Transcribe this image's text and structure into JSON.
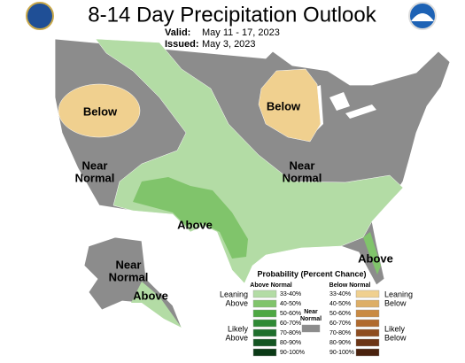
{
  "header": {
    "title": "8-14 Day Precipitation Outlook",
    "valid_label": "Valid:",
    "valid": "May 11 - 17, 2023",
    "issued_label": "Issued:",
    "issued": "May 3, 2023"
  },
  "map_labels": [
    {
      "lines": [
        "Below"
      ]
    },
    {
      "lines": [
        "Below"
      ]
    },
    {
      "lines": [
        "Near",
        "Normal"
      ]
    },
    {
      "lines": [
        "Near",
        "Normal"
      ]
    },
    {
      "lines": [
        "Above"
      ]
    },
    {
      "lines": [
        "Above"
      ]
    },
    {
      "lines": [
        "Near",
        "Normal"
      ]
    },
    {
      "lines": [
        "Above"
      ]
    }
  ],
  "legend": {
    "title": "Probability (Percent Chance)",
    "above_header": "Above Normal",
    "below_header": "Below Normal",
    "near_label": [
      "Near",
      "Normal"
    ],
    "near_color": "#8c8c8c",
    "leaning_above": [
      "Leaning",
      "Above"
    ],
    "likely_above": [
      "Likely",
      "Above"
    ],
    "leaning_below": [
      "Leaning",
      "Below"
    ],
    "likely_below": [
      "Likely",
      "Below"
    ],
    "above": [
      {
        "range": "33-40%",
        "color": "#b3dca5"
      },
      {
        "range": "40-50%",
        "color": "#80c46b"
      },
      {
        "range": "50-60%",
        "color": "#4ea843"
      },
      {
        "range": "60-70%",
        "color": "#2f8a35"
      },
      {
        "range": "70-80%",
        "color": "#1e6e2c"
      },
      {
        "range": "80-90%",
        "color": "#145522"
      },
      {
        "range": "90-100%",
        "color": "#0b3a16"
      }
    ],
    "below": [
      {
        "range": "33-40%",
        "color": "#f0d08f"
      },
      {
        "range": "40-50%",
        "color": "#ddae66"
      },
      {
        "range": "50-60%",
        "color": "#c98a43"
      },
      {
        "range": "60-70%",
        "color": "#b06a2e"
      },
      {
        "range": "70-80%",
        "color": "#8e4d20"
      },
      {
        "range": "80-90%",
        "color": "#6c3516"
      },
      {
        "range": "90-100%",
        "color": "#4a220e"
      }
    ]
  }
}
